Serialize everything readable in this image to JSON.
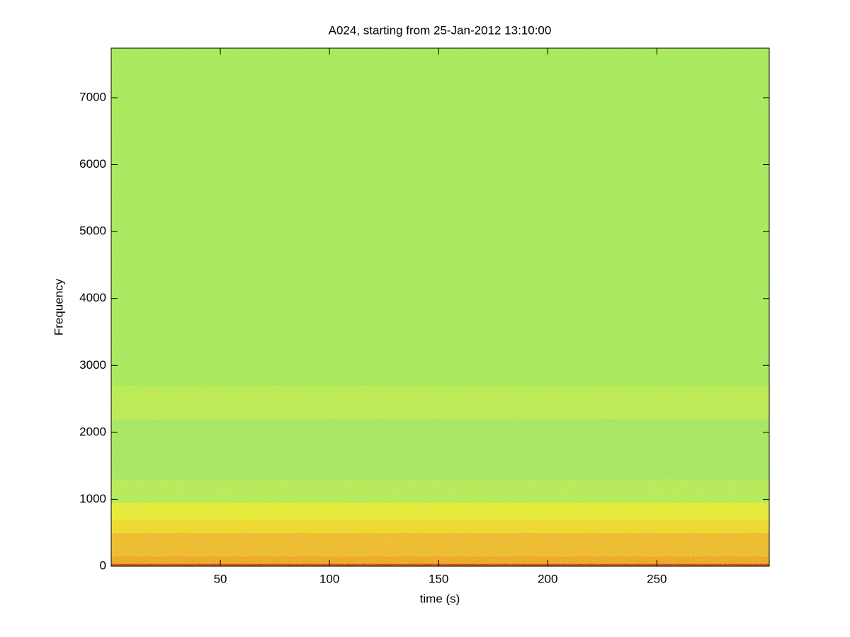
{
  "chart_data": {
    "type": "spectrogram",
    "title": "A024, starting from 25-Jan-2012 13:10:00",
    "xlabel": "time (s)",
    "ylabel": "Frequency",
    "xlim": [
      0,
      301.5
    ],
    "ylim": [
      0,
      7740
    ],
    "xticks": [
      50,
      100,
      150,
      200,
      250
    ],
    "yticks": [
      0,
      1000,
      2000,
      3000,
      4000,
      5000,
      6000,
      7000
    ],
    "color_bands": [
      {
        "range": [
          0,
          40
        ],
        "color": "#cc4a10"
      },
      {
        "range": [
          40,
          150
        ],
        "color": "#f0a424"
      },
      {
        "range": [
          150,
          500
        ],
        "color": "#f2b82a"
      },
      {
        "range": [
          500,
          700
        ],
        "color": "#f4d62a"
      },
      {
        "range": [
          700,
          950
        ],
        "color": "#eaea34"
      },
      {
        "range": [
          950,
          1300
        ],
        "color": "#b6ea58"
      },
      {
        "range": [
          1300,
          2200
        ],
        "color": "#a6e662"
      },
      {
        "range": [
          2200,
          2700
        ],
        "color": "#bcea52"
      },
      {
        "range": [
          2700,
          7740
        ],
        "color": "#a8e85a"
      }
    ]
  }
}
